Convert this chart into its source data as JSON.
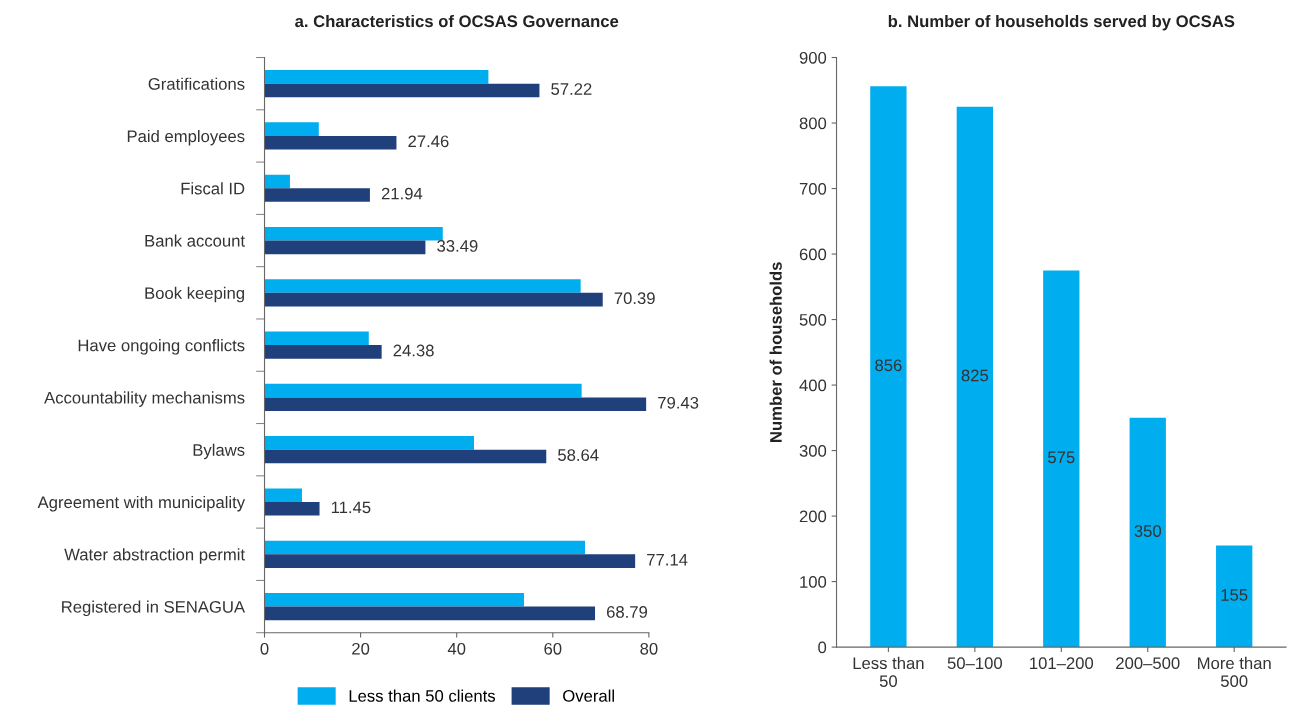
{
  "chart_data": [
    {
      "type": "bar",
      "orientation": "horizontal",
      "title": "a. Characteristics of OCSAS Governance",
      "categories": [
        "Gratifications",
        "Paid employees",
        "Fiscal ID",
        "Bank account",
        "Book keeping",
        "Have ongoing conflicts",
        "Accountability mechanisms",
        "Bylaws",
        "Agreement with municipality",
        "Water abstraction permit",
        "Registered in SENAGUA"
      ],
      "series": [
        {
          "name": "Less than 50 clients",
          "color": "#00adef",
          "values": [
            46.6,
            11.3,
            5.3,
            37.1,
            65.8,
            21.7,
            66.0,
            43.6,
            7.8,
            66.7,
            54.0
          ]
        },
        {
          "name": "Overall",
          "color": "#1f407a",
          "values": [
            57.22,
            27.46,
            21.94,
            33.49,
            70.39,
            24.38,
            79.43,
            58.64,
            11.45,
            77.14,
            68.79
          ],
          "value_labels": [
            "57.22",
            "27.46",
            "21.94",
            "33.49",
            "70.39",
            "24.38",
            "79.43",
            "58.64",
            "11.45",
            "77.14",
            "68.79"
          ]
        }
      ],
      "xlim": [
        0,
        80
      ],
      "xticks": [
        0,
        20,
        40,
        60,
        80
      ],
      "grid": false,
      "legend": "bottom"
    },
    {
      "type": "bar",
      "title": "b. Number of households served by OCSAS",
      "ylabel": "Number of households",
      "categories": [
        "Less than\n50",
        "50–100",
        "101–200",
        "200–500",
        "More than\n500"
      ],
      "values": [
        856,
        825,
        575,
        350,
        155
      ],
      "color": "#00adef",
      "ylim": [
        0,
        900
      ],
      "yticks": [
        0,
        100,
        200,
        300,
        400,
        500,
        600,
        700,
        800,
        900
      ],
      "grid": false,
      "data_labels": true
    }
  ]
}
